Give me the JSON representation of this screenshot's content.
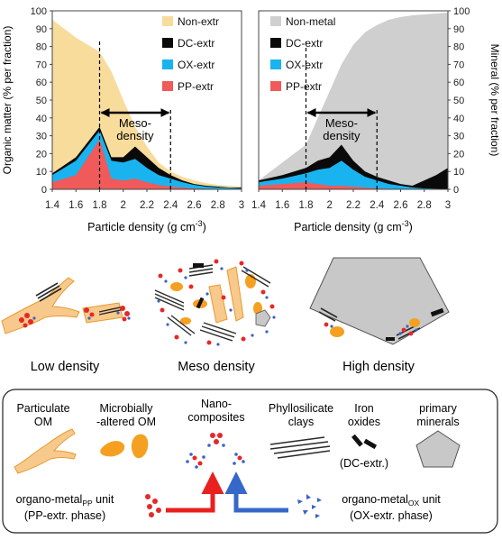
{
  "chart_data": [
    {
      "type": "area",
      "xlabel": "Particle density (g cm",
      "xlabel_sup": "-3",
      "xlabel_end": ")",
      "ylabel": "Organic matter (% per fraction)",
      "xlim": [
        1.4,
        3.0
      ],
      "ylim": [
        0,
        100
      ],
      "x_ticks": [
        "1.4",
        "1.6",
        "1.8",
        "2",
        "2.2",
        "2.4",
        "2.6",
        "2.8",
        "3"
      ],
      "y_ticks": [
        "0",
        "10",
        "20",
        "30",
        "40",
        "50",
        "60",
        "70",
        "80",
        "90",
        "100"
      ],
      "x": [
        1.4,
        1.6,
        1.8,
        1.9,
        2.0,
        2.1,
        2.2,
        2.3,
        2.4,
        2.5,
        2.6,
        2.7,
        2.8,
        2.9,
        3.0
      ],
      "series": [
        {
          "name": "Non-extr",
          "color": "#f8dc9c",
          "values": [
            95,
            85,
            77,
            66,
            50,
            35,
            24,
            15,
            10,
            7,
            5,
            3.5,
            2.5,
            2,
            1.5
          ]
        },
        {
          "name": "DC-extr",
          "color": "#0a0a0a",
          "values": [
            9,
            18,
            35,
            18,
            18,
            24,
            18,
            12,
            8,
            5,
            3,
            2,
            1.5,
            1,
            1
          ]
        },
        {
          "name": "OX-extr",
          "color": "#19b4ef",
          "values": [
            8,
            16,
            33,
            16,
            15,
            17,
            12,
            8,
            6,
            4,
            2.5,
            1.5,
            1,
            0.8,
            0.5
          ]
        },
        {
          "name": "PP-extr",
          "color": "#f05a5a",
          "values": [
            4,
            8,
            28,
            6,
            5,
            6,
            4,
            2.5,
            1.5,
            1,
            0.5,
            0.3,
            0.2,
            0.1,
            0.1
          ]
        }
      ],
      "annotation": {
        "label_line1": "Meso-",
        "label_line2": "density",
        "range": [
          1.8,
          2.4
        ]
      }
    },
    {
      "type": "area",
      "xlabel": "Particle density (g cm",
      "xlabel_sup": "-3",
      "xlabel_end": ")",
      "ylabel": "Mineral (% per fraction)",
      "xlim": [
        1.4,
        3.0
      ],
      "ylim": [
        0,
        100
      ],
      "x_ticks": [
        "1.4",
        "1.6",
        "1.8",
        "2",
        "2.2",
        "2.4",
        "2.6",
        "2.8",
        "3"
      ],
      "y_ticks": [
        "0",
        "10",
        "20",
        "30",
        "40",
        "50",
        "60",
        "70",
        "80",
        "90",
        "100"
      ],
      "x": [
        1.4,
        1.6,
        1.8,
        1.9,
        2.0,
        2.1,
        2.2,
        2.3,
        2.4,
        2.5,
        2.6,
        2.7,
        2.8,
        2.9,
        3.0
      ],
      "series": [
        {
          "name": "Non-metal",
          "color": "#cfcfcf",
          "values": [
            5,
            15,
            25,
            40,
            55,
            70,
            81,
            88,
            92,
            95,
            96.5,
            97.5,
            98,
            98.5,
            99
          ]
        },
        {
          "name": "DC-extr",
          "color": "#0a0a0a",
          "values": [
            5,
            8,
            12,
            16,
            18,
            25,
            16,
            10,
            7,
            5,
            3,
            2,
            5,
            8,
            12
          ]
        },
        {
          "name": "OX-extr",
          "color": "#19b4ef",
          "values": [
            4,
            6,
            9,
            11,
            12,
            16,
            11,
            7,
            5,
            3,
            2,
            1,
            0.5,
            0.3,
            0.2
          ]
        },
        {
          "name": "PP-extr",
          "color": "#f05a5a",
          "values": [
            2,
            3,
            4,
            3,
            2,
            2,
            1.5,
            1,
            0.5,
            0.3,
            0.2,
            0.1,
            0.1,
            0.1,
            0.1
          ]
        }
      ],
      "annotation": {
        "label_line1": "Meso-",
        "label_line2": "density",
        "range": [
          1.8,
          2.4
        ]
      }
    }
  ],
  "colors": {
    "pom": "#f8c98c",
    "pom_stroke": "#e89a2c",
    "microbial": "#f5a020",
    "metal_red": "#e62828",
    "metal_blue": "#3a62c8",
    "clay": "#2a2a2a",
    "mineral_gray": "#c8c8c8",
    "arrow_red": "#e8201e",
    "arrow_blue": "#3568c8"
  },
  "density_labels": {
    "low": "Low density",
    "meso": "Meso density",
    "high": "High density"
  },
  "legend_box": {
    "particulate_l1": "Particulate",
    "particulate_l2": "OM",
    "microbial_l1": "Microbially",
    "microbial_l2": "-altered OM",
    "nano_l1": "Nano-",
    "nano_l2": "composites",
    "phyllo_l1": "Phyllosilicate",
    "phyllo_l2": "clays",
    "iron_l1": "Iron",
    "iron_l2": "oxides",
    "primary_l1": "primary",
    "primary_l2": "minerals",
    "dc_extr": "(DC-extr.)",
    "pp_unit_l1": "organo-metal",
    "pp_unit_sub": "PP",
    "pp_unit_l1_end": " unit",
    "pp_unit_l2": "(PP-extr. phase)",
    "ox_unit_l1": "organo-metal",
    "ox_unit_sub": "OX",
    "ox_unit_l1_end": " unit",
    "ox_unit_l2": "(OX-extr. phase)"
  }
}
